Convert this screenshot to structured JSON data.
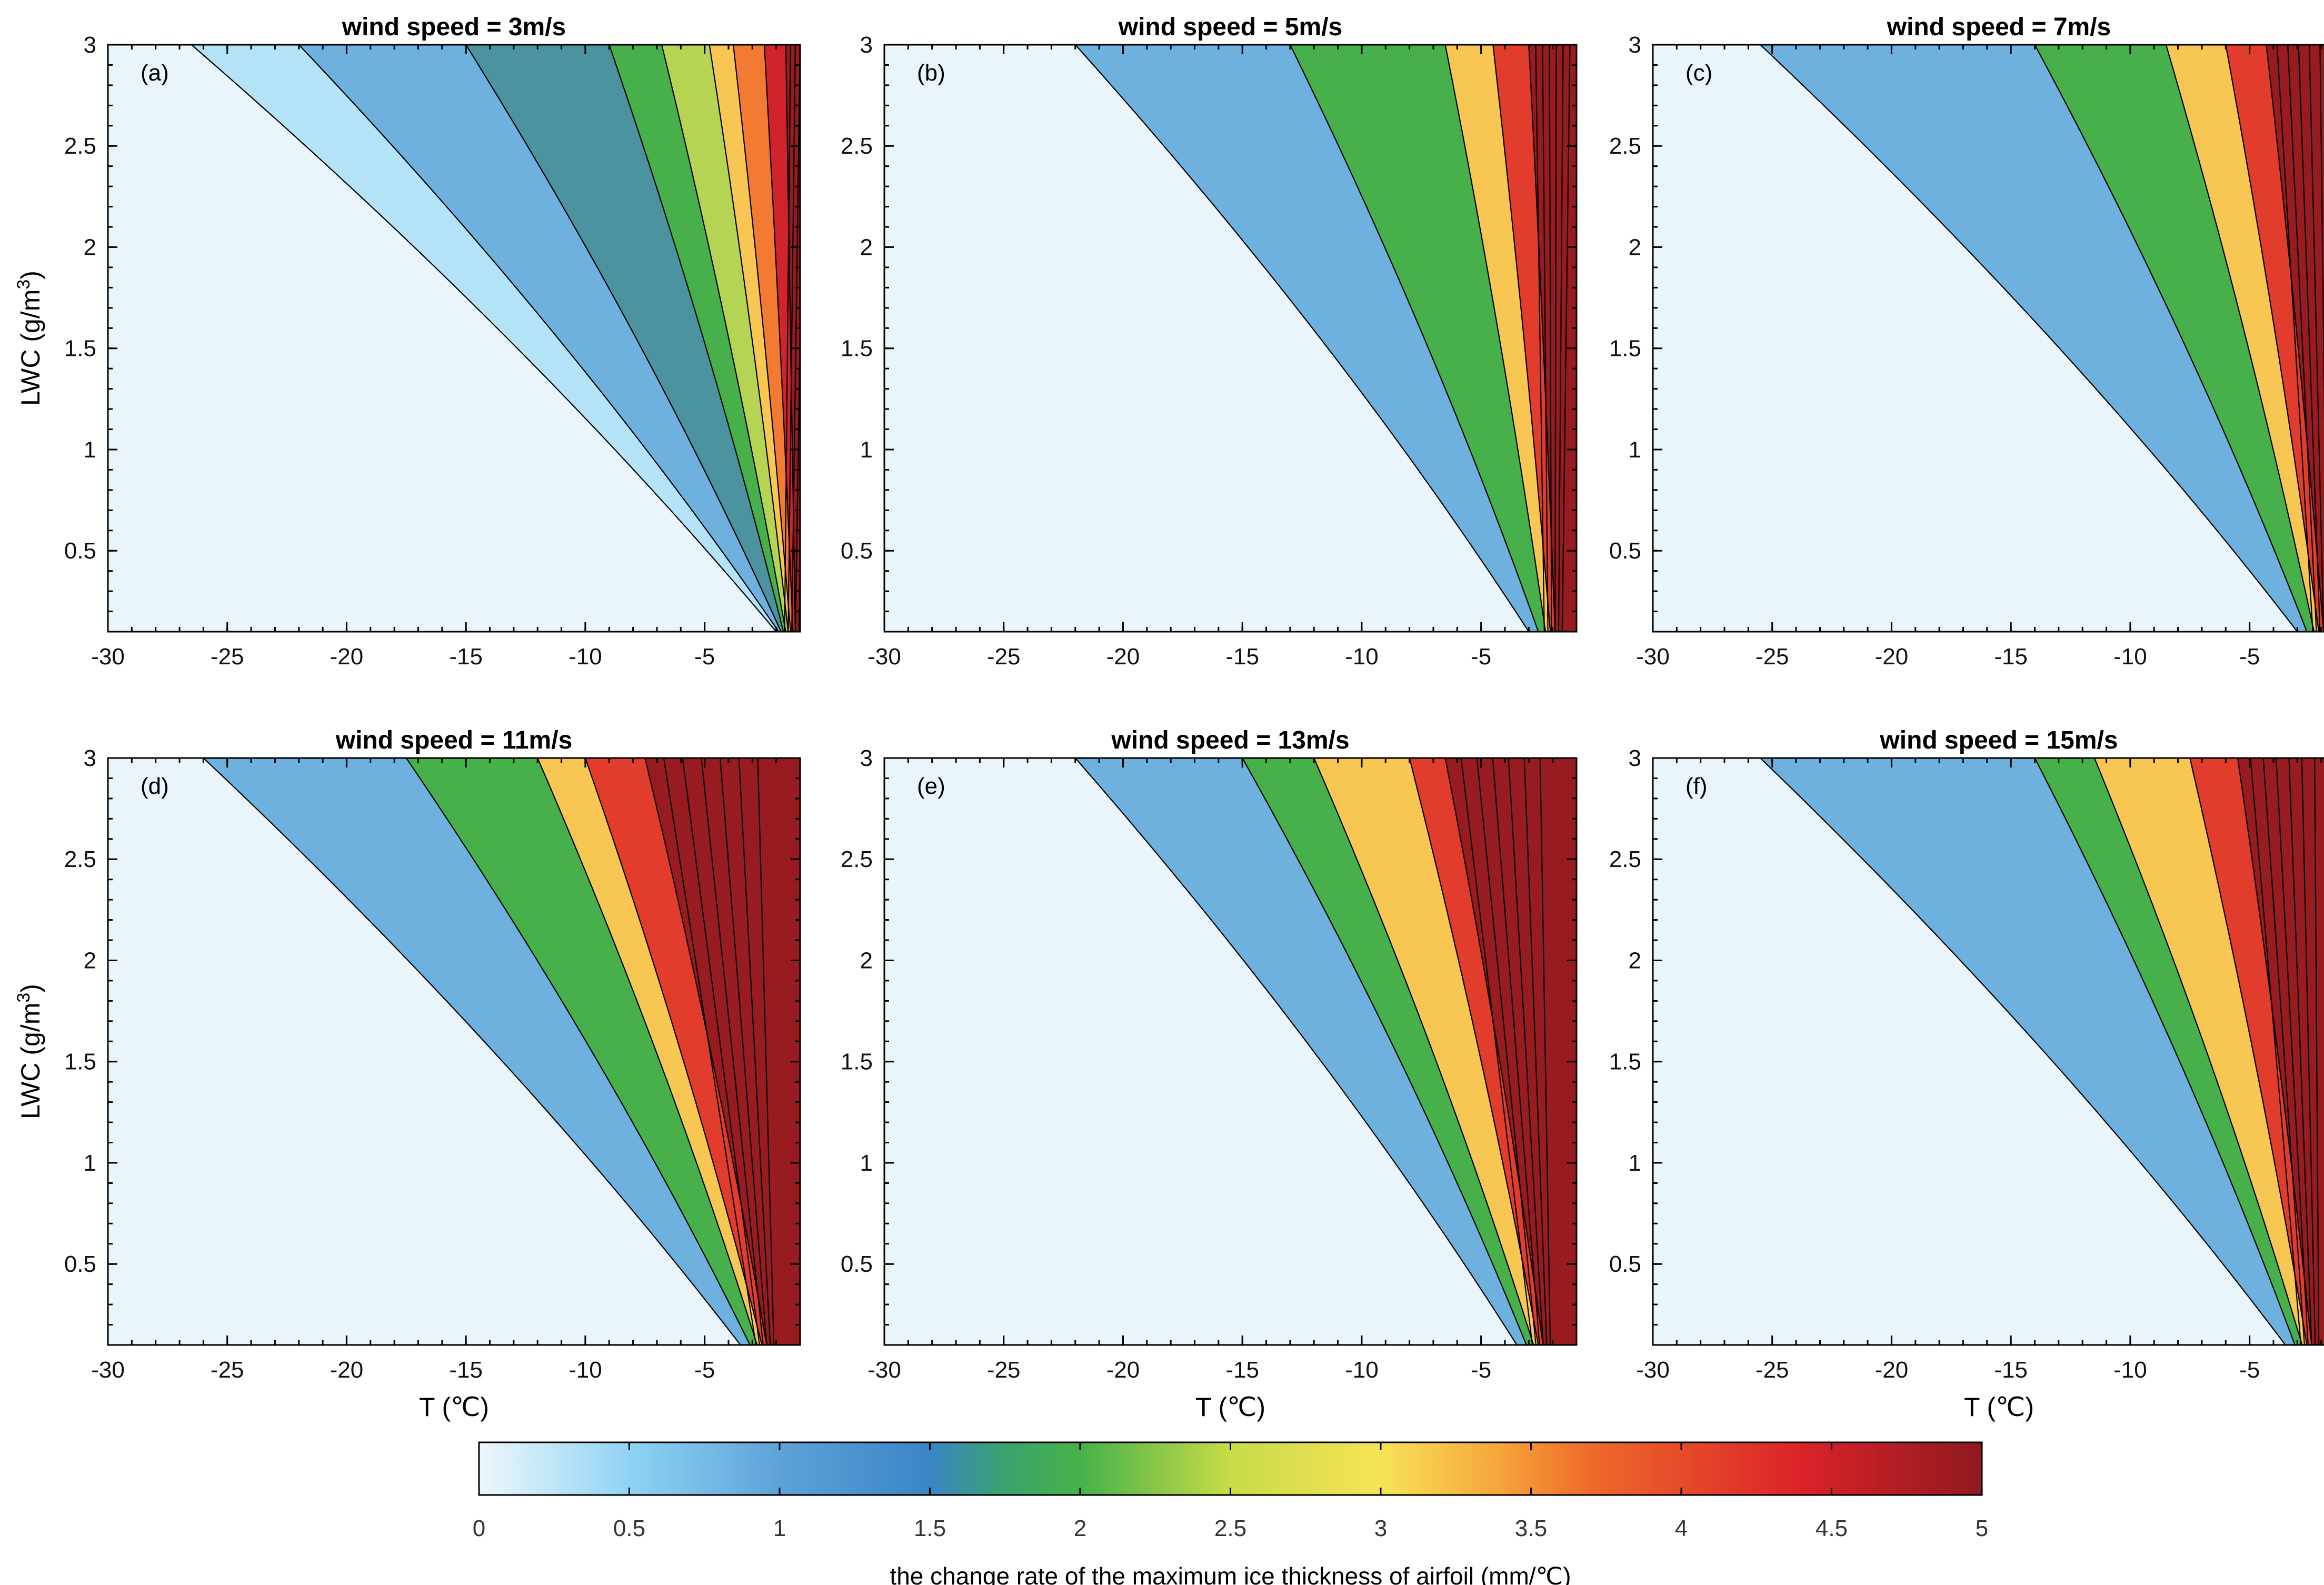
{
  "chart_data": {
    "type": "heatmap",
    "subtype": "filled-contour",
    "x_label": "T (℃)",
    "y_label": "LWC (g/m",
    "y_label_sup": "3",
    "y_label_tail": ")",
    "xlim": [
      -30,
      -1
    ],
    "ylim": [
      0.1,
      3
    ],
    "x_ticks": [
      -30,
      -25,
      -20,
      -15,
      -10,
      -5
    ],
    "x_tick_labels": [
      "-30",
      "-25",
      "-20",
      "-15",
      "-10",
      "-5"
    ],
    "y_ticks": [
      0.5,
      1,
      1.5,
      2,
      2.5,
      3
    ],
    "y_tick_labels": [
      "0.5",
      "1",
      "1.5",
      "2",
      "2.5",
      "3"
    ],
    "colorbar": {
      "title": "the change rate of the maximum ice thickness of airfoil (mm/℃)",
      "range": [
        0,
        5
      ],
      "ticks": [
        0,
        0.5,
        1,
        1.5,
        2,
        2.5,
        3,
        3.5,
        4,
        4.5,
        5
      ],
      "tick_labels": [
        "0",
        "0.5",
        "1",
        "1.5",
        "2",
        "2.5",
        "3",
        "3.5",
        "4",
        "4.5",
        "5"
      ],
      "colors": [
        "#eef7fc",
        "#8fd3f3",
        "#5da3d9",
        "#3b85c6",
        "#3aa36d",
        "#47b14a",
        "#c7dc47",
        "#f7e357",
        "#f6a43b",
        "#ee6a2a",
        "#db2229",
        "#8f1a1f"
      ],
      "color_positions": [
        0,
        0.5,
        1,
        1.5,
        1.75,
        2,
        2.5,
        3,
        3.4,
        3.7,
        4.4,
        5
      ]
    },
    "level_colors": {
      "0": "#eaf5fb",
      "0.5": "#b4e2f6",
      "1": "#6eb0de",
      "1.5": "#4a939f",
      "2": "#48b04b",
      "2.5": "#b5d453",
      "3": "#f8c652",
      "3.5": "#f27a32",
      "4": "#e23d2c",
      "4.5": "#d0232c",
      "5": "#981b20"
    },
    "panels": [
      {
        "letter": "(a)",
        "title": "wind speed = 3m/s",
        "bands": [
          {
            "level": 0.5,
            "top_T": -26.5,
            "bottom_T": -2.0
          },
          {
            "level": 1,
            "top_T": -22.0,
            "bottom_T": -1.9
          },
          {
            "level": 1.5,
            "top_T": -15.0,
            "bottom_T": -1.8
          },
          {
            "level": 2,
            "top_T": -9.0,
            "bottom_T": -1.7
          },
          {
            "level": 2.5,
            "top_T": -6.8,
            "bottom_T": -1.6
          },
          {
            "level": 3,
            "top_T": -4.8,
            "bottom_T": -1.5
          },
          {
            "level": 3.5,
            "top_T": -3.8,
            "bottom_T": -1.4
          },
          {
            "level": 4.5,
            "top_T": -2.5,
            "bottom_T": -1.3
          },
          {
            "level": 5,
            "top_T": -1.6,
            "bottom_T": -1.2
          }
        ]
      },
      {
        "letter": "(b)",
        "title": "wind speed = 5m/s",
        "bands": [
          {
            "level": 1,
            "top_T": -22.0,
            "bottom_T": -3.0
          },
          {
            "level": 2,
            "top_T": -13.0,
            "bottom_T": -2.6
          },
          {
            "level": 3,
            "top_T": -6.5,
            "bottom_T": -2.3
          },
          {
            "level": 4,
            "top_T": -4.5,
            "bottom_T": -2.1
          },
          {
            "level": 5,
            "top_T": -3.0,
            "bottom_T": -1.9
          }
        ]
      },
      {
        "letter": "(c)",
        "title": "wind speed = 7m/s",
        "bands": [
          {
            "level": 1,
            "top_T": -25.5,
            "bottom_T": -3.0
          },
          {
            "level": 2,
            "top_T": -14.0,
            "bottom_T": -2.6
          },
          {
            "level": 3,
            "top_T": -8.5,
            "bottom_T": -2.3
          },
          {
            "level": 4,
            "top_T": -6.0,
            "bottom_T": -2.1
          },
          {
            "level": 5,
            "top_T": -4.3,
            "bottom_T": -1.9
          }
        ]
      },
      {
        "letter": "(d)",
        "title": "wind speed = 11m/s",
        "bands": [
          {
            "level": 1,
            "top_T": -26.0,
            "bottom_T": -3.5
          },
          {
            "level": 2,
            "top_T": -17.5,
            "bottom_T": -3.1
          },
          {
            "level": 3,
            "top_T": -12.0,
            "bottom_T": -2.8
          },
          {
            "level": 4,
            "top_T": -10.0,
            "bottom_T": -2.6
          },
          {
            "level": 5,
            "top_T": -7.5,
            "bottom_T": -2.4
          }
        ]
      },
      {
        "letter": "(e)",
        "title": "wind speed = 13m/s",
        "bands": [
          {
            "level": 1,
            "top_T": -22.0,
            "bottom_T": -3.5
          },
          {
            "level": 2,
            "top_T": -15.0,
            "bottom_T": -3.1
          },
          {
            "level": 3,
            "top_T": -12.0,
            "bottom_T": -2.8
          },
          {
            "level": 4,
            "top_T": -8.0,
            "bottom_T": -2.6
          },
          {
            "level": 5,
            "top_T": -6.5,
            "bottom_T": -2.4
          }
        ]
      },
      {
        "letter": "(f)",
        "title": "wind speed = 15m/s",
        "bands": [
          {
            "level": 1,
            "top_T": -25.5,
            "bottom_T": -3.5
          },
          {
            "level": 2,
            "top_T": -14.0,
            "bottom_T": -3.1
          },
          {
            "level": 3,
            "top_T": -11.5,
            "bottom_T": -2.8
          },
          {
            "level": 4,
            "top_T": -7.5,
            "bottom_T": -2.6
          },
          {
            "level": 5,
            "top_T": -5.5,
            "bottom_T": -2.4
          }
        ]
      }
    ]
  }
}
